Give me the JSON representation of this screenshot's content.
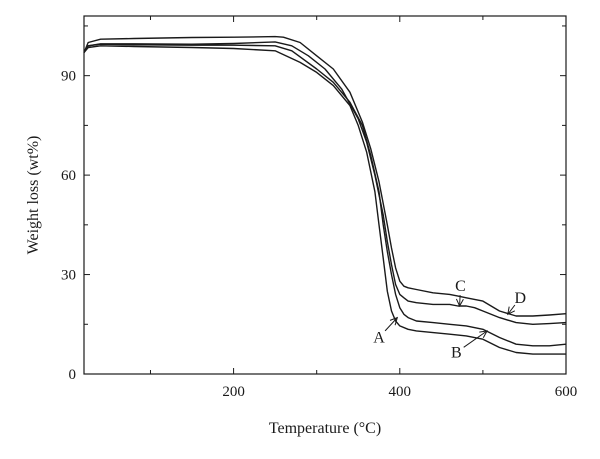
{
  "chart_data": {
    "type": "line",
    "xlabel": "Temperature (°C)",
    "ylabel": "Weight loss (wt%)",
    "xlim": [
      20,
      600
    ],
    "ylim": [
      0,
      108
    ],
    "x_ticks": [
      200,
      400,
      600
    ],
    "x_tick_labels": [
      "200",
      "400",
      "600"
    ],
    "y_ticks": [
      0,
      30,
      60,
      90
    ],
    "y_tick_labels": [
      "0",
      "30",
      "60",
      "90"
    ],
    "grid": false,
    "series": [
      {
        "name": "A",
        "x": [
          20,
          25,
          40,
          80,
          150,
          200,
          250,
          280,
          300,
          320,
          340,
          350,
          360,
          370,
          375,
          380,
          385,
          390,
          395,
          400,
          410,
          420,
          440,
          460,
          480,
          500,
          520,
          540,
          560,
          580,
          600
        ],
        "y": [
          97,
          98.5,
          99,
          98.8,
          98.5,
          98.2,
          97.5,
          94,
          91,
          87,
          81,
          75,
          67,
          55,
          45,
          35,
          25,
          19,
          16,
          14.5,
          13.5,
          13,
          12.5,
          12,
          11.5,
          10.5,
          8,
          6.5,
          6,
          6,
          6
        ]
      },
      {
        "name": "B",
        "x": [
          20,
          25,
          40,
          80,
          150,
          200,
          250,
          270,
          300,
          320,
          340,
          355,
          365,
          375,
          380,
          385,
          390,
          395,
          400,
          405,
          410,
          420,
          440,
          460,
          480,
          500,
          520,
          540,
          560,
          580,
          600
        ],
        "y": [
          97,
          99,
          99.5,
          99.3,
          99.2,
          99.2,
          99,
          97.5,
          92,
          88,
          82,
          75,
          66,
          55,
          45,
          37,
          30,
          24,
          20,
          18,
          17,
          16,
          15.5,
          15,
          14.5,
          13.5,
          11,
          9,
          8.5,
          8.5,
          9
        ]
      },
      {
        "name": "C",
        "x": [
          20,
          25,
          40,
          80,
          150,
          200,
          250,
          270,
          290,
          310,
          330,
          350,
          360,
          370,
          380,
          385,
          390,
          395,
          400,
          405,
          410,
          420,
          440,
          460,
          470,
          480,
          490,
          500,
          520,
          540,
          560,
          580,
          600
        ],
        "y": [
          97,
          99,
          99.6,
          99.6,
          99.5,
          99.7,
          100.2,
          99,
          96,
          92,
          86,
          77,
          70,
          60,
          48,
          40,
          33,
          27,
          24,
          23,
          22,
          21.5,
          21,
          21,
          20.5,
          20.5,
          20,
          19,
          17,
          15.5,
          15,
          15.2,
          15.5
        ]
      },
      {
        "name": "D",
        "x": [
          20,
          25,
          40,
          80,
          150,
          200,
          250,
          260,
          280,
          300,
          320,
          340,
          355,
          365,
          375,
          385,
          390,
          395,
          400,
          405,
          410,
          420,
          440,
          460,
          470,
          480,
          500,
          520,
          540,
          560,
          580,
          600
        ],
        "y": [
          97,
          100,
          101,
          101.2,
          101.5,
          101.6,
          101.8,
          101.6,
          100,
          96,
          92,
          85,
          76,
          68,
          58,
          45,
          38,
          32,
          28,
          26.5,
          26,
          25.5,
          24.5,
          24,
          23.5,
          23,
          22,
          19,
          17.5,
          17.5,
          17.8,
          18.2
        ]
      }
    ],
    "annotations": [
      {
        "label": "A",
        "x": 375,
        "y": 11,
        "arrow_to": [
          397,
          17
        ]
      },
      {
        "label": "B",
        "x": 468,
        "y": 6.5,
        "arrow_to": [
          505,
          13
        ]
      },
      {
        "label": "C",
        "x": 473,
        "y": 26.5,
        "arrow_to": [
          472,
          20.5
        ]
      },
      {
        "label": "D",
        "x": 545,
        "y": 23,
        "arrow_to": [
          530,
          18
        ]
      }
    ]
  }
}
